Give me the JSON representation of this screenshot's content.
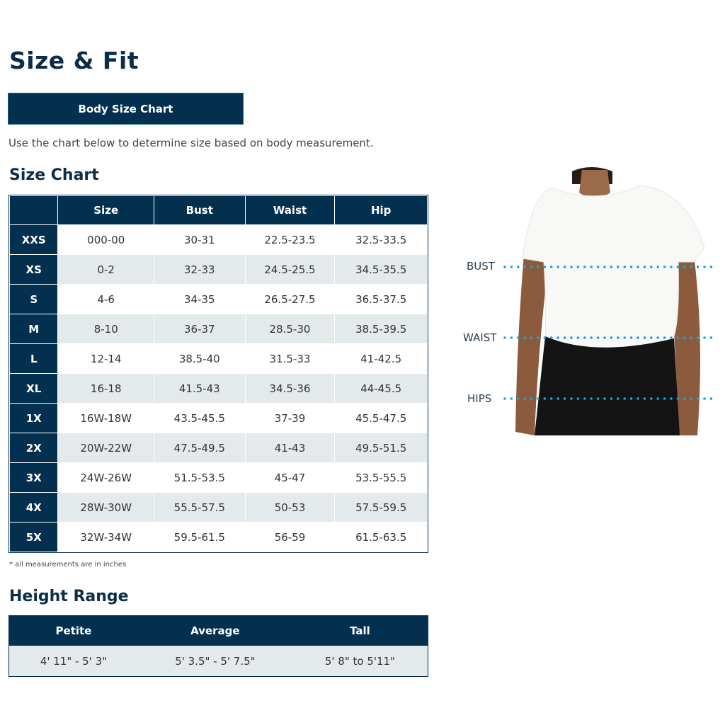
{
  "page_title": "Size & Fit",
  "body_size_chart_button": "Body Size Chart",
  "intro_text": "Use the chart below to determine size based on body measurement.",
  "size_chart": {
    "heading": "Size Chart",
    "columns": [
      "",
      "Size",
      "Bust",
      "Waist",
      "Hip"
    ],
    "rows": [
      [
        "XXS",
        "000-00",
        "30-31",
        "22.5-23.5",
        "32.5-33.5"
      ],
      [
        "XS",
        "0-2",
        "32-33",
        "24.5-25.5",
        "34.5-35.5"
      ],
      [
        "S",
        "4-6",
        "34-35",
        "26.5-27.5",
        "36.5-37.5"
      ],
      [
        "M",
        "8-10",
        "36-37",
        "28.5-30",
        "38.5-39.5"
      ],
      [
        "L",
        "12-14",
        "38.5-40",
        "31.5-33",
        "41-42.5"
      ],
      [
        "XL",
        "16-18",
        "41.5-43",
        "34.5-36",
        "44-45.5"
      ],
      [
        "1X",
        "16W-18W",
        "43.5-45.5",
        "37-39",
        "45.5-47.5"
      ],
      [
        "2X",
        "20W-22W",
        "47.5-49.5",
        "41-43",
        "49.5-51.5"
      ],
      [
        "3X",
        "24W-26W",
        "51.5-53.5",
        "45-47",
        "53.5-55.5"
      ],
      [
        "4X",
        "28W-30W",
        "55.5-57.5",
        "50-53",
        "57.5-59.5"
      ],
      [
        "5X",
        "32W-34W",
        "59.5-61.5",
        "56-59",
        "61.5-63.5"
      ]
    ],
    "note": "* all measurements are in inches"
  },
  "height_range": {
    "heading": "Height Range",
    "columns": [
      "Petite",
      "Average",
      "Tall"
    ],
    "values": [
      "4' 11\" - 5' 3\"",
      "5' 3.5\" - 5' 7.5\"",
      "5' 8\" to 5'11\""
    ]
  },
  "figure": {
    "labels": [
      "BUST",
      "WAIST",
      "HIPS"
    ],
    "dot_color": "#1aa3d9"
  },
  "colors": {
    "navy": "#03304f",
    "row_alt": "#e4e9ec"
  }
}
